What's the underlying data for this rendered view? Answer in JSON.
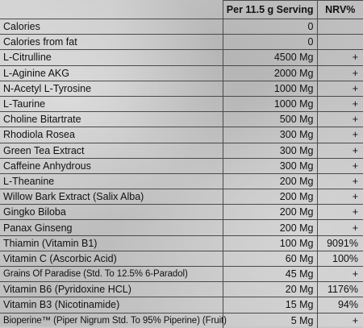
{
  "header": {
    "serving": "Per 11.5 g Serving",
    "nrv": "NRV%"
  },
  "rows": [
    {
      "name": "Calories",
      "amount": "0",
      "nrv": ""
    },
    {
      "name": "Calories from fat",
      "amount": "0",
      "nrv": ""
    },
    {
      "name": "L-Citrulline",
      "amount": "4500 Mg",
      "nrv": "+"
    },
    {
      "name": "L-Aginine AKG",
      "amount": "2000 Mg",
      "nrv": "+"
    },
    {
      "name": "N-Acetyl L-Tyrosine",
      "amount": "1000 Mg",
      "nrv": "+"
    },
    {
      "name": "L-Taurine",
      "amount": "1000 Mg",
      "nrv": "+"
    },
    {
      "name": "Choline Bitartrate",
      "amount": "500 Mg",
      "nrv": "+"
    },
    {
      "name": "Rhodiola Rosea",
      "amount": "300 Mg",
      "nrv": "+"
    },
    {
      "name": "Green Tea Extract",
      "amount": "300 Mg",
      "nrv": "+"
    },
    {
      "name": "Caffeine Anhydrous",
      "amount": "300 Mg",
      "nrv": "+"
    },
    {
      "name": "L-Theanine",
      "amount": "200 Mg",
      "nrv": "+"
    },
    {
      "name": "Willow Bark Extract (Salix Alba)",
      "amount": "200 Mg",
      "nrv": "+"
    },
    {
      "name": "Gingko Biloba",
      "amount": "200 Mg",
      "nrv": "+"
    },
    {
      "name": "Panax Ginseng",
      "amount": "200 Mg",
      "nrv": "+"
    },
    {
      "name": "Thiamin (Vitamin B1)",
      "amount": "100 Mg",
      "nrv": "9091%"
    },
    {
      "name": "Vitamin C (Ascorbic Acid)",
      "amount": "60 Mg",
      "nrv": "100%"
    },
    {
      "name": "Grains Of Paradise (Std. To 12.5% 6-Paradol)",
      "amount": "45 Mg",
      "nrv": "+"
    },
    {
      "name": "Vitamin B6 (Pyridoxine HCL)",
      "amount": "20 Mg",
      "nrv": "1176%"
    },
    {
      "name": "Vitamin B3 (Nicotinamide)",
      "amount": "15 Mg",
      "nrv": "94%"
    },
    {
      "name": "Bioperine™ (Piper Nigrum Std. To 95% Piperine) (Fruit)",
      "amount": "5 Mg",
      "nrv": "+"
    }
  ]
}
